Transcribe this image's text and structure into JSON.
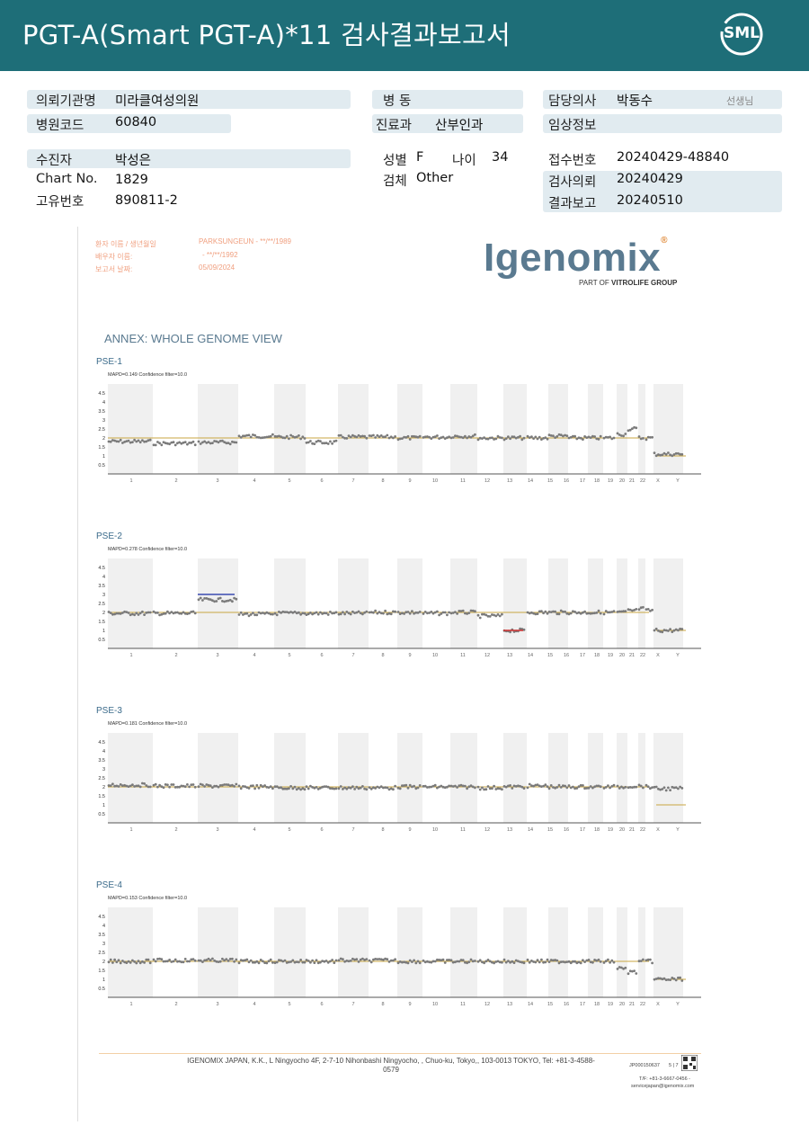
{
  "header": {
    "title": "PGT-A(Smart  PGT-A)*11 검사결과보고서",
    "logo": "SML"
  },
  "info": {
    "institution_label": "의뢰기관명",
    "institution": "미라클여성의원",
    "hospital_code_label": "병원코드",
    "hospital_code": "60840",
    "ward_label": "병  동",
    "ward": "",
    "dept_label": "진료과",
    "dept": "산부인과",
    "doctor_label": "담당의사",
    "doctor": "박동수",
    "doctor_suffix": "선생님",
    "clinical_label": "임상정보",
    "clinical": "",
    "patient_label": "수진자",
    "patient": "박성은",
    "chart_label": "Chart No.",
    "chart": "1829",
    "id_label": "고유번호",
    "id": "890811-2",
    "sex_label": "성별",
    "sex": "F",
    "age_label": "나이",
    "age": "34",
    "specimen_label": "검체",
    "specimen": "Other",
    "receipt_label": "접수번호",
    "receipt": "20240429-48840",
    "request_label": "검사의뢰",
    "request": "20240429",
    "result_label": "결과보고",
    "result": "20240510"
  },
  "report": {
    "patient_name_label": "환자 이름 / 생년월일",
    "patient_name_value": "PARKSUNGEUN - **/**/1989",
    "spouse_label": "배우자 이름:",
    "spouse_value": "- **/**/1992",
    "date_label": "보고서 날짜:",
    "date_value": "05/09/2024",
    "logo": "Igenomix",
    "logo_reg": "®",
    "logo_sub_prefix": "PART OF ",
    "logo_sub_bold": "VITROLIFE GROUP",
    "annex_title": "ANNEX: WHOLE GENOME VIEW",
    "footer": "IGENOMIX JAPAN, K.K., L Ningyocho 4F, 2-7-10 Nihonbashi Ningyocho, , Chuo-ku, Tokyo,, 103-0013 TOKYO, Tel: +81-3-4588-0579",
    "doc_code": "JP000150637",
    "page": "5 | 7",
    "contact_tel": "T/F: +81-3-6667-0456 -",
    "contact_email": "servicejapan@igenomix.com"
  },
  "chart_data": [
    {
      "type": "scatter",
      "title": "PSE-1",
      "subtitle": "MAPD=0.149 Confidence filter=10.0",
      "categories": [
        "1",
        "2",
        "3",
        "4",
        "5",
        "6",
        "7",
        "8",
        "9",
        "10",
        "11",
        "12",
        "13",
        "14",
        "15",
        "16",
        "17",
        "18",
        "19",
        "20",
        "21",
        "22",
        "X",
        "Y"
      ],
      "yticks": [
        "4.5",
        "4",
        "3.5",
        "3",
        "2.5",
        "2",
        "1.5",
        "1",
        "0.5"
      ],
      "ylim": [
        0,
        5
      ],
      "reference_line": 2,
      "segments": [
        1.8,
        1.7,
        1.75,
        2.1,
        2.05,
        1.75,
        2.05,
        2.05,
        2.0,
        2.05,
        2.1,
        2.0,
        2.0,
        2.0,
        2.1,
        2.0,
        2.0,
        2.0,
        2.2,
        2.5,
        2.0,
        2.0,
        1.1,
        0
      ],
      "abnormal": []
    },
    {
      "type": "scatter",
      "title": "PSE-2",
      "subtitle": "MAPD=0.278 Confidence filter=10.0",
      "categories": [
        "1",
        "2",
        "3",
        "4",
        "5",
        "6",
        "7",
        "8",
        "9",
        "10",
        "11",
        "12",
        "13",
        "14",
        "15",
        "16",
        "17",
        "18",
        "19",
        "20",
        "21",
        "22",
        "X",
        "Y"
      ],
      "yticks": [
        "4.5",
        "4",
        "3.5",
        "3",
        "2.5",
        "2",
        "1.5",
        "1",
        "0.5"
      ],
      "ylim": [
        0,
        5
      ],
      "reference_line": 2,
      "segments": [
        1.95,
        1.95,
        2.7,
        1.9,
        1.95,
        1.95,
        1.95,
        2.0,
        2.0,
        1.95,
        2.0,
        1.8,
        1.0,
        2.0,
        2.0,
        2.0,
        2.0,
        2.0,
        2.0,
        2.1,
        2.2,
        2.1,
        1.0,
        0
      ],
      "abnormal": [
        {
          "chromosome": "3",
          "value": 3.0,
          "color": "#3a4ab0"
        },
        {
          "chromosome": "13",
          "value": 1.0,
          "color": "#d03030"
        }
      ]
    },
    {
      "type": "scatter",
      "title": "PSE-3",
      "subtitle": "MAPD=0.181 Confidence filter=10.0",
      "categories": [
        "1",
        "2",
        "3",
        "4",
        "5",
        "6",
        "7",
        "8",
        "9",
        "10",
        "11",
        "12",
        "13",
        "14",
        "15",
        "16",
        "17",
        "18",
        "19",
        "20",
        "21",
        "22",
        "X",
        "Y"
      ],
      "yticks": [
        "4.5",
        "4",
        "3.5",
        "3",
        "2.5",
        "2",
        "1.5",
        "1",
        "0.5"
      ],
      "ylim": [
        0,
        5
      ],
      "reference_line": 2,
      "segments": [
        2.1,
        2.05,
        2.05,
        2.0,
        1.95,
        1.95,
        1.95,
        1.95,
        2.0,
        2.0,
        2.0,
        1.95,
        2.0,
        2.05,
        2.0,
        2.0,
        2.0,
        2.0,
        2.0,
        2.05,
        2.05,
        2.0,
        1.9,
        0
      ],
      "abnormal": []
    },
    {
      "type": "scatter",
      "title": "PSE-4",
      "subtitle": "MAPD=0.153 Confidence filter=10.0",
      "categories": [
        "1",
        "2",
        "3",
        "4",
        "5",
        "6",
        "7",
        "8",
        "9",
        "10",
        "11",
        "12",
        "13",
        "14",
        "15",
        "16",
        "17",
        "18",
        "19",
        "20",
        "21",
        "22",
        "X",
        "Y"
      ],
      "yticks": [
        "4.5",
        "4",
        "3.5",
        "3",
        "2.5",
        "2",
        "1.5",
        "1",
        "0.5"
      ],
      "ylim": [
        0,
        5
      ],
      "reference_line": 2,
      "segments": [
        2.0,
        2.05,
        2.05,
        2.0,
        2.0,
        2.0,
        2.05,
        2.05,
        2.0,
        2.0,
        2.0,
        2.0,
        2.0,
        2.0,
        2.0,
        2.0,
        2.0,
        2.0,
        1.6,
        1.4,
        2.0,
        2.0,
        1.0,
        0
      ],
      "abnormal": []
    }
  ]
}
